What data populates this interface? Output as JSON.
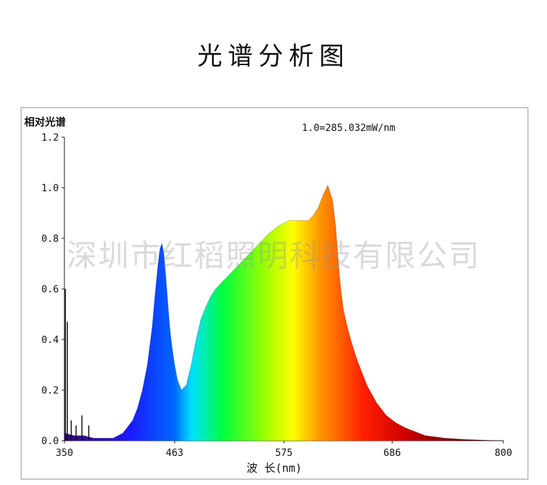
{
  "page_title": "光谱分析图",
  "watermark": "深圳市红稻照明科技有限公司",
  "chart_data": {
    "type": "area",
    "title": "",
    "ylabel": "相对光谱",
    "xlabel": "波 长(nm)",
    "annotation": "1.0=285.032mW/nm",
    "xlim": [
      350,
      800
    ],
    "ylim": [
      0,
      1.2
    ],
    "x_ticks": [
      "350",
      "463",
      "575",
      "686",
      "800"
    ],
    "y_ticks": [
      "0.0",
      "0.2",
      "0.4",
      "0.6",
      "0.8",
      "1.0",
      "1.2"
    ],
    "grid": false,
    "series": [
      {
        "x": [
          350,
          360,
          370,
          380,
          390,
          400,
          410,
          420,
          425,
          430,
          435,
          440,
          443,
          446,
          448,
          450,
          452,
          454,
          456,
          458,
          460,
          463,
          466,
          470,
          475,
          480,
          485,
          490,
          495,
          500,
          505,
          510,
          515,
          520,
          530,
          540,
          550,
          560,
          570,
          575,
          580,
          590,
          600,
          605,
          610,
          615,
          620,
          625,
          628,
          630,
          632,
          634,
          636,
          640,
          645,
          650,
          660,
          670,
          680,
          690,
          700,
          720,
          740,
          760,
          780,
          800
        ],
        "y": [
          0.03,
          0.02,
          0.02,
          0.01,
          0.01,
          0.01,
          0.03,
          0.08,
          0.13,
          0.2,
          0.3,
          0.45,
          0.58,
          0.7,
          0.76,
          0.78,
          0.74,
          0.65,
          0.55,
          0.45,
          0.38,
          0.3,
          0.24,
          0.2,
          0.22,
          0.3,
          0.4,
          0.48,
          0.53,
          0.57,
          0.6,
          0.62,
          0.64,
          0.66,
          0.7,
          0.74,
          0.78,
          0.82,
          0.85,
          0.86,
          0.87,
          0.87,
          0.87,
          0.89,
          0.92,
          0.97,
          1.01,
          0.95,
          0.85,
          0.75,
          0.65,
          0.58,
          0.52,
          0.45,
          0.38,
          0.32,
          0.22,
          0.15,
          0.1,
          0.07,
          0.05,
          0.02,
          0.01,
          0.005,
          0.002,
          0.0
        ]
      }
    ],
    "spikes": [
      {
        "x": 351,
        "y": 0.6
      },
      {
        "x": 353,
        "y": 0.47
      },
      {
        "x": 357,
        "y": 0.08
      },
      {
        "x": 362,
        "y": 0.06
      },
      {
        "x": 368,
        "y": 0.1
      },
      {
        "x": 375,
        "y": 0.06
      }
    ]
  }
}
